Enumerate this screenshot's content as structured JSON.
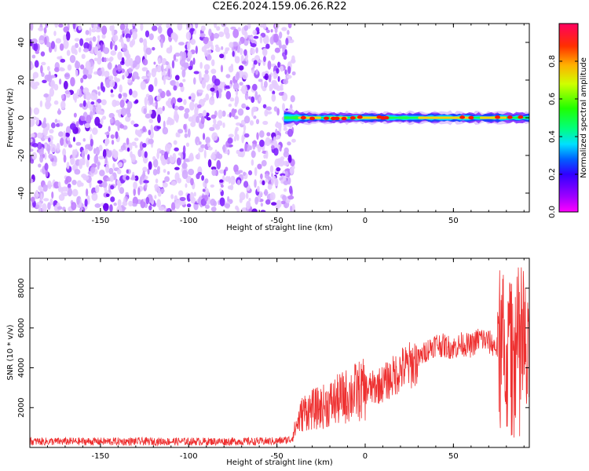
{
  "title": "C2E6.2024.159.06.26.R22",
  "chart_data": [
    {
      "type": "heatmap",
      "xlabel": "Height of straight line (km)",
      "ylabel": "Frequency (Hz)",
      "xlim": [
        -190,
        93
      ],
      "ylim": [
        -50,
        50
      ],
      "xticks": [
        -150,
        -100,
        -50,
        0,
        50
      ],
      "yticks": [
        -40,
        -20,
        0,
        20,
        40
      ],
      "colorbar": {
        "label": "Normalized spectral amplitude",
        "range": [
          0,
          1
        ],
        "ticks": [
          0.0,
          0.2,
          0.4,
          0.6,
          0.8
        ],
        "colormap": "gist_rainbow"
      },
      "features": {
        "noise_region_x": [
          -190,
          -43
        ],
        "signal_band_x": [
          -46,
          93
        ],
        "signal_band_frequency": 0
      }
    },
    {
      "type": "line",
      "xlabel": "Height of straight line (km)",
      "ylabel": "SNR (10 * v/v)",
      "xlim": [
        -190,
        93
      ],
      "ylim": [
        0,
        9500
      ],
      "xticks": [
        -150,
        -100,
        -50,
        0,
        50
      ],
      "yticks": [
        2000,
        4000,
        6000,
        8000
      ],
      "color": "#ee3030",
      "series": [
        {
          "x": [
            -190,
            -150,
            -100,
            -60,
            -50,
            -42,
            -38,
            -35,
            -30,
            -25,
            -20,
            -15,
            -10,
            -5,
            0,
            5,
            10,
            15,
            20,
            25,
            30,
            35,
            40,
            45,
            50,
            55,
            60,
            65,
            70,
            75,
            80,
            85,
            90,
            93
          ],
          "values": [
            300,
            300,
            300,
            300,
            320,
            400,
            1300,
            1800,
            1900,
            2000,
            2200,
            2400,
            2600,
            2800,
            2900,
            3000,
            3200,
            3500,
            3900,
            4100,
            4400,
            4900,
            5200,
            5100,
            5000,
            5200,
            5100,
            5500,
            5300,
            5000,
            4300,
            4500,
            4800,
            3500
          ]
        }
      ]
    }
  ]
}
